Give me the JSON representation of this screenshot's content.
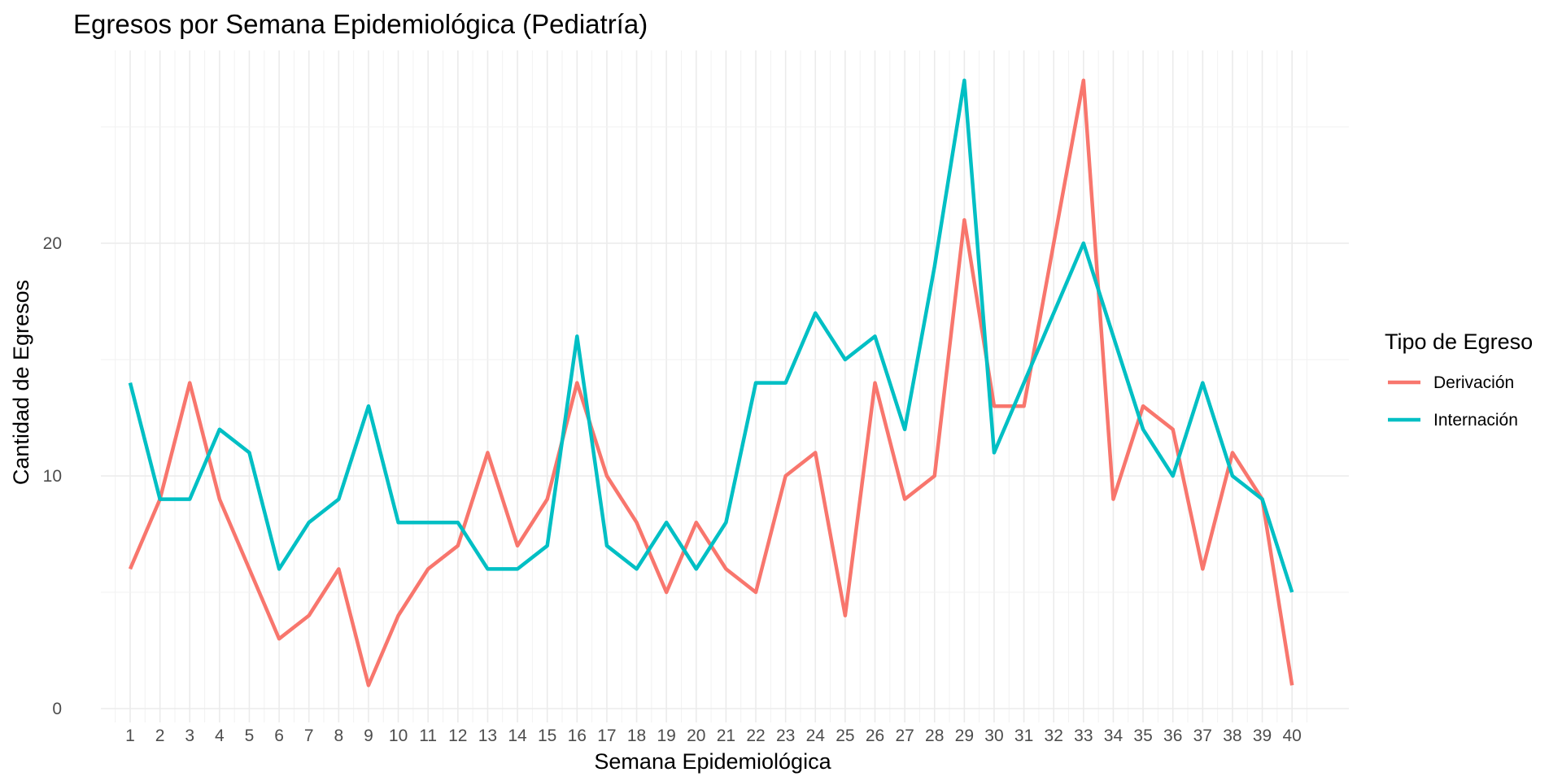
{
  "chart_data": {
    "type": "line",
    "title": "Egresos por Semana Epidemiológica (Pediatría)",
    "xlabel": "Semana Epidemiológica",
    "ylabel": "Cantidad de Egresos",
    "x": [
      1,
      2,
      3,
      4,
      5,
      6,
      7,
      8,
      9,
      10,
      11,
      12,
      13,
      14,
      15,
      16,
      17,
      18,
      19,
      20,
      21,
      22,
      23,
      24,
      25,
      26,
      27,
      28,
      29,
      30,
      31,
      32,
      33,
      34,
      35,
      36,
      37,
      38,
      39,
      40
    ],
    "x_tick_labels": [
      "1",
      "2",
      "3",
      "4",
      "5",
      "6",
      "7",
      "8",
      "9",
      "10",
      "11",
      "12",
      "13",
      "14",
      "15",
      "16",
      "17",
      "18",
      "19",
      "20",
      "21",
      "22",
      "23",
      "24",
      "25",
      "26",
      "27",
      "28",
      "29",
      "30",
      "31",
      "32",
      "33",
      "34",
      "35",
      "36",
      "37",
      "38",
      "39",
      "40"
    ],
    "y_ticks": [
      0,
      10,
      20
    ],
    "y_tick_labels": [
      "0",
      "10",
      "20"
    ],
    "ylim": [
      0,
      27
    ],
    "grid": true,
    "legend": {
      "title": "Tipo de Egreso",
      "position": "right"
    },
    "series": [
      {
        "name": "Derivación",
        "color": "#F8766D",
        "values": [
          6,
          9,
          14,
          9,
          6,
          3,
          4,
          6,
          1,
          4,
          6,
          7,
          11,
          7,
          9,
          14,
          10,
          8,
          5,
          8,
          6,
          5,
          10,
          11,
          4,
          14,
          9,
          10,
          21,
          13,
          13,
          20,
          27,
          9,
          13,
          12,
          6,
          11,
          9,
          1
        ]
      },
      {
        "name": "Internación",
        "color": "#00BFC4",
        "values": [
          14,
          9,
          9,
          12,
          11,
          6,
          8,
          9,
          13,
          8,
          8,
          8,
          6,
          6,
          7,
          16,
          7,
          6,
          8,
          6,
          8,
          14,
          14,
          17,
          15,
          16,
          12,
          19,
          27,
          11,
          14,
          17,
          20,
          16,
          12,
          10,
          14,
          10,
          9,
          5
        ]
      }
    ]
  }
}
